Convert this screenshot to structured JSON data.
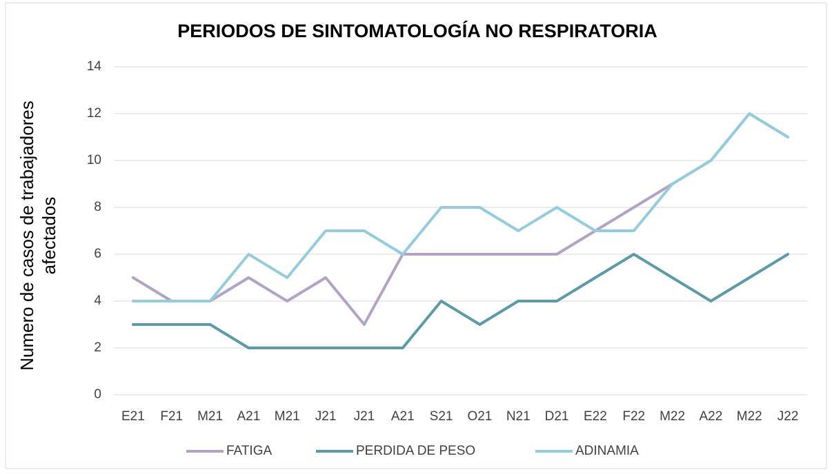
{
  "chart_data": {
    "type": "line",
    "title": "PERIODOS DE SINTOMATOLOGÍA NO RESPIRATORIA",
    "y_label": "Numero de casos de trabajadores afectados",
    "categories": [
      "E21",
      "F21",
      "M21",
      "A21",
      "M21",
      "J21",
      "J21",
      "A21",
      "S21",
      "O21",
      "N21",
      "D21",
      "E22",
      "F22",
      "M22",
      "A22",
      "M22",
      "J22"
    ],
    "series": [
      {
        "name": "FATIGA",
        "color": "#b3a2c7",
        "values": [
          5,
          4,
          4,
          5,
          4,
          5,
          3,
          6,
          6,
          6,
          6,
          6,
          7,
          8,
          9,
          10,
          12,
          11
        ]
      },
      {
        "name": "PERDIDA DE PESO",
        "color": "#5b9aa9",
        "values": [
          3,
          3,
          3,
          2,
          2,
          2,
          2,
          2,
          4,
          3,
          4,
          4,
          5,
          6,
          5,
          4,
          5,
          6
        ]
      },
      {
        "name": "ADINAMIA",
        "color": "#93cddd",
        "values": [
          4,
          4,
          4,
          6,
          5,
          7,
          7,
          6,
          8,
          8,
          7,
          8,
          7,
          7,
          9,
          10,
          12,
          11
        ]
      }
    ],
    "ylim": [
      0,
      14
    ],
    "yticks": [
      0,
      2,
      4,
      6,
      8,
      10,
      12,
      14
    ],
    "grid": true,
    "legend": "bottom"
  }
}
